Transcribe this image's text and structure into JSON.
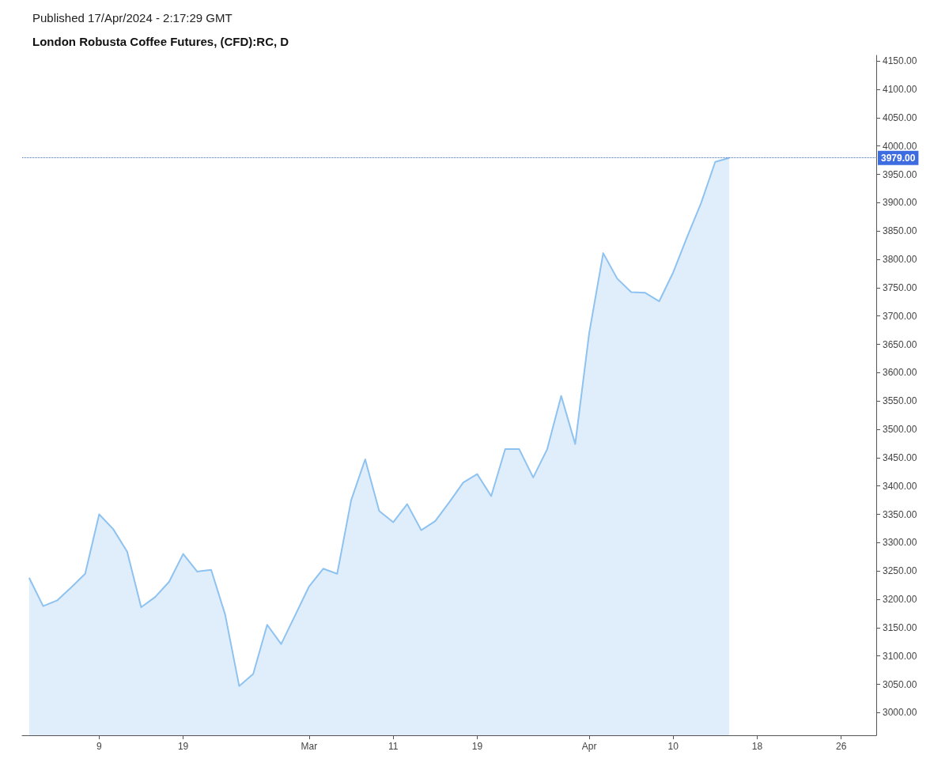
{
  "chart_data": {
    "type": "area",
    "title": "London Robusta Coffee Futures, (CFD):RC, D",
    "subtitle": "Published 17/Apr/2024 - 2:17:29 GMT",
    "categories": [
      null,
      null,
      null,
      null,
      null,
      "9",
      null,
      null,
      null,
      null,
      null,
      "19",
      null,
      null,
      null,
      null,
      null,
      null,
      null,
      null,
      "Mar",
      null,
      null,
      null,
      null,
      null,
      "11",
      null,
      null,
      null,
      null,
      null,
      "19",
      null,
      null,
      null,
      null,
      null,
      null,
      null,
      "Apr",
      null,
      null,
      null,
      null,
      null,
      "10",
      null,
      null,
      null,
      null,
      null,
      "18",
      null,
      null,
      null,
      null,
      null,
      "26",
      null,
      null
    ],
    "series": [
      {
        "color": "#8ec2f0",
        "values": [
          3238,
          3188,
          3198,
          3221,
          3245,
          3350,
          3324,
          3284,
          3186,
          3204,
          3231,
          3280,
          3249,
          3252,
          3173,
          3047,
          3068,
          3155,
          3121,
          3172,
          3223,
          3254,
          3245,
          3375,
          3447,
          3356,
          3336,
          3368,
          3322,
          3338,
          3371,
          3406,
          3421,
          3382,
          3465,
          3465,
          3415,
          3465,
          3559,
          3474,
          3670,
          3811,
          3766,
          3742,
          3741,
          3726,
          3777,
          3840,
          3900,
          3972,
          3979,
          null,
          null,
          null,
          null,
          null,
          null,
          null,
          null,
          null,
          null
        ]
      }
    ],
    "ylim": [
      2960,
      4160
    ],
    "yticks": [
      {
        "value": 3000,
        "label": "3000.00"
      },
      {
        "value": 3050,
        "label": "3050.00"
      },
      {
        "value": 3100,
        "label": "3100.00"
      },
      {
        "value": 3150,
        "label": "3150.00"
      },
      {
        "value": 3200,
        "label": "3200.00"
      },
      {
        "value": 3250,
        "label": "3250.00"
      },
      {
        "value": 3300,
        "label": "3300.00"
      },
      {
        "value": 3350,
        "label": "3350.00"
      },
      {
        "value": 3400,
        "label": "3400.00"
      },
      {
        "value": 3450,
        "label": "3450.00"
      },
      {
        "value": 3500,
        "label": "3500.00"
      },
      {
        "value": 3550,
        "label": "3550.00"
      },
      {
        "value": 3600,
        "label": "3600.00"
      },
      {
        "value": 3650,
        "label": "3650.00"
      },
      {
        "value": 3700,
        "label": "3700.00"
      },
      {
        "value": 3750,
        "label": "3750.00"
      },
      {
        "value": 3800,
        "label": "3800.00"
      },
      {
        "value": 3850,
        "label": "3850.00"
      },
      {
        "value": 3900,
        "label": "3900.00"
      },
      {
        "value": 3950,
        "label": "3950.00"
      },
      {
        "value": 4000,
        "label": "4000.00"
      },
      {
        "value": 4050,
        "label": "4050.00"
      },
      {
        "value": 4100,
        "label": "4100.00"
      },
      {
        "value": 4150,
        "label": "4150.00"
      }
    ],
    "ref_lines": [
      {
        "axis": "y",
        "value": 3979,
        "label": "3979.00",
        "color": "#3d6be0",
        "line_style": "dotted"
      }
    ],
    "grid": false,
    "marker": "none",
    "line_style": "solid"
  }
}
